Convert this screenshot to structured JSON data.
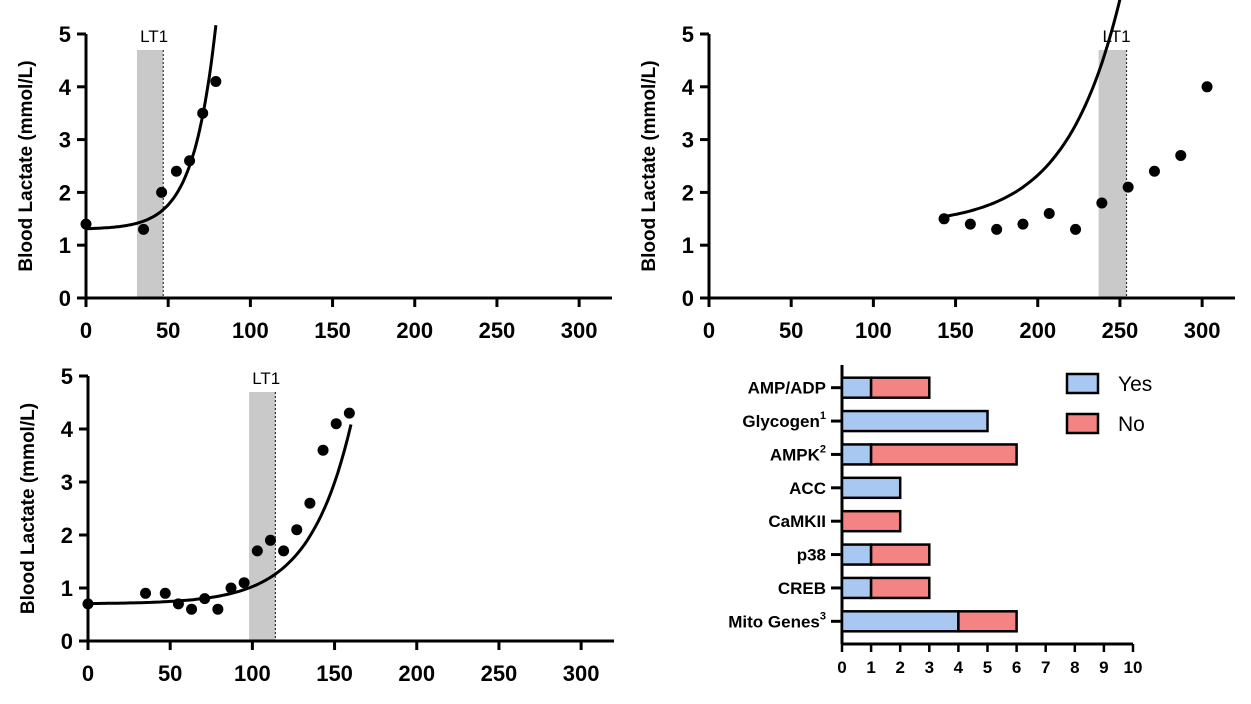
{
  "chart_data": [
    {
      "type": "scatter",
      "title": "",
      "xlabel": "",
      "ylabel": "Blood Lactate (mmol/L)",
      "xlim": [
        0,
        320
      ],
      "ylim": [
        0,
        5
      ],
      "x_ticks": [
        "0",
        "50",
        "100",
        "150",
        "200",
        "250",
        "300"
      ],
      "y_ticks": [
        "0",
        "1",
        "2",
        "3",
        "4",
        "5"
      ],
      "threshold": {
        "label": "LT1",
        "start": 31,
        "end": 47
      },
      "points": [
        {
          "x": 0,
          "y": 1.4
        },
        {
          "x": 35,
          "y": 1.3
        },
        {
          "x": 46,
          "y": 2.0
        },
        {
          "x": 55,
          "y": 2.4
        },
        {
          "x": 63,
          "y": 2.6
        },
        {
          "x": 71,
          "y": 3.5
        },
        {
          "x": 79,
          "y": 4.1
        }
      ],
      "fit": {
        "x_range": [
          0,
          79
        ],
        "base": 1.3,
        "amp": 0.0121,
        "rate": 0.073
      },
      "grid": false,
      "legend": "none"
    },
    {
      "type": "scatter",
      "title": "",
      "xlabel": "",
      "ylabel": "Blood Lactate (mmol/L)",
      "xlim": [
        0,
        320
      ],
      "ylim": [
        0,
        5
      ],
      "x_ticks": [
        "0",
        "50",
        "100",
        "150",
        "200",
        "250",
        "300"
      ],
      "y_ticks": [
        "0",
        "1",
        "2",
        "3",
        "4",
        "5"
      ],
      "threshold": {
        "label": "LT1",
        "start": 237,
        "end": 254
      },
      "points": [
        {
          "x": 143,
          "y": 1.5
        },
        {
          "x": 159,
          "y": 1.4
        },
        {
          "x": 175,
          "y": 1.3
        },
        {
          "x": 191,
          "y": 1.4
        },
        {
          "x": 207,
          "y": 1.6
        },
        {
          "x": 223,
          "y": 1.3
        },
        {
          "x": 239,
          "y": 1.8
        },
        {
          "x": 255,
          "y": 2.1
        },
        {
          "x": 271,
          "y": 2.4
        },
        {
          "x": 287,
          "y": 2.7
        },
        {
          "x": 303,
          "y": 4.0
        }
      ],
      "fit": {
        "x_range": [
          143,
          303
        ],
        "base": 1.37,
        "amp": 0.00237,
        "rate": 0.03
      },
      "grid": false,
      "legend": "none"
    },
    {
      "type": "scatter",
      "title": "",
      "xlabel": "",
      "ylabel": "Blood Lactate (mmol/L)",
      "xlim": [
        0,
        320
      ],
      "ylim": [
        0,
        5
      ],
      "x_ticks": [
        "0",
        "50",
        "100",
        "150",
        "200",
        "250",
        "300"
      ],
      "y_ticks": [
        "0",
        "1",
        "2",
        "3",
        "4",
        "5"
      ],
      "threshold": {
        "label": "LT1",
        "start": 98,
        "end": 114
      },
      "points": [
        {
          "x": 0,
          "y": 0.7
        },
        {
          "x": 35,
          "y": 0.9
        },
        {
          "x": 47,
          "y": 0.9
        },
        {
          "x": 55,
          "y": 0.7
        },
        {
          "x": 63,
          "y": 0.6
        },
        {
          "x": 71,
          "y": 0.8
        },
        {
          "x": 79,
          "y": 0.6
        },
        {
          "x": 87,
          "y": 1.0
        },
        {
          "x": 95,
          "y": 1.1
        },
        {
          "x": 103,
          "y": 1.7
        },
        {
          "x": 111,
          "y": 1.9
        },
        {
          "x": 119,
          "y": 1.7
        },
        {
          "x": 127,
          "y": 2.1
        },
        {
          "x": 135,
          "y": 2.6
        },
        {
          "x": 143,
          "y": 3.6
        },
        {
          "x": 151,
          "y": 4.1
        },
        {
          "x": 159,
          "y": 4.3
        }
      ],
      "fit": {
        "x_range": [
          0,
          160
        ],
        "base": 0.7,
        "amp": 0.0066,
        "rate": 0.039
      },
      "grid": false,
      "legend": "none"
    },
    {
      "type": "bar",
      "orientation": "horizontal",
      "stacked": true,
      "title": "",
      "xlabel": "",
      "ylabel": "",
      "xlim": [
        0,
        10
      ],
      "x_ticks": [
        "0",
        "1",
        "2",
        "3",
        "4",
        "5",
        "6",
        "7",
        "8",
        "9",
        "10"
      ],
      "categories": [
        {
          "label": "AMP/ADP",
          "sup": ""
        },
        {
          "label": "Glycogen",
          "sup": "1"
        },
        {
          "label": "AMPK",
          "sup": "2"
        },
        {
          "label": "ACC",
          "sup": ""
        },
        {
          "label": "CaMKII",
          "sup": ""
        },
        {
          "label": "p38",
          "sup": ""
        },
        {
          "label": "CREB",
          "sup": ""
        },
        {
          "label": "Mito Genes",
          "sup": "3"
        }
      ],
      "series": [
        {
          "name": "Yes",
          "color": "#a8c8f2",
          "values": [
            1,
            5,
            1,
            2,
            0,
            1,
            1,
            4
          ]
        },
        {
          "name": "No",
          "color": "#f48484",
          "values": [
            2,
            0,
            5,
            0,
            2,
            2,
            2,
            2
          ]
        }
      ],
      "grid": false,
      "legend": "top-right"
    }
  ]
}
